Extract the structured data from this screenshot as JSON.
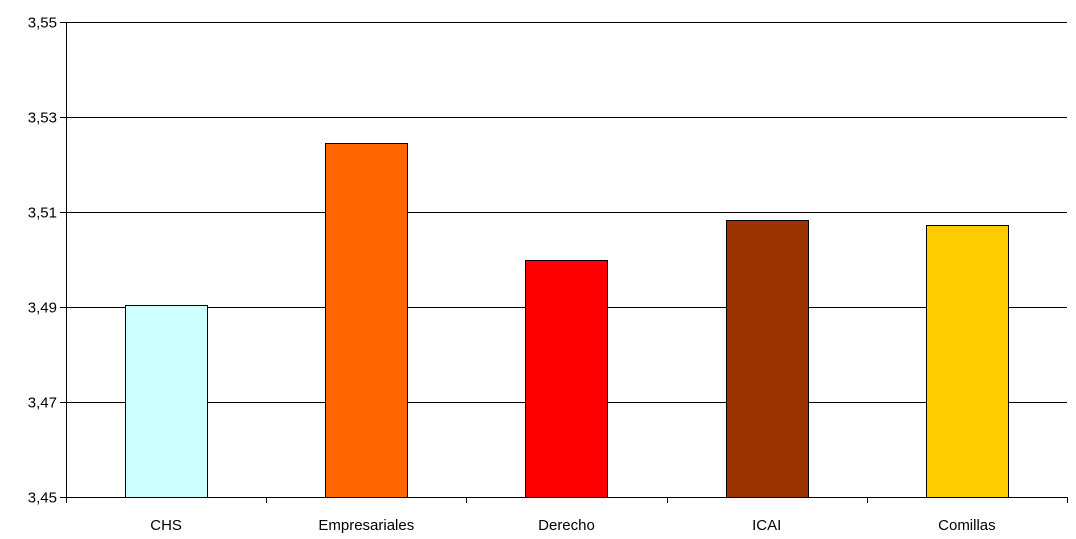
{
  "chart_data": {
    "type": "bar",
    "title": "",
    "xlabel": "",
    "ylabel": "",
    "categories": [
      "CHS",
      "Empresariales",
      "Derecho",
      "ICAI",
      "Comillas"
    ],
    "values": [
      3.4905,
      3.5246,
      3.4998,
      3.5084,
      3.5072
    ],
    "colors": [
      "#ccffff",
      "#ff6600",
      "#ff0000",
      "#993300",
      "#ffcc00"
    ],
    "ylim": [
      3.45,
      3.55
    ],
    "yticks": [
      3.45,
      3.47,
      3.49,
      3.51,
      3.53,
      3.55
    ],
    "ytick_labels": [
      "3,45",
      "3,47",
      "3,49",
      "3,51",
      "3,53",
      "3,55"
    ],
    "grid": true,
    "legend": false
  }
}
